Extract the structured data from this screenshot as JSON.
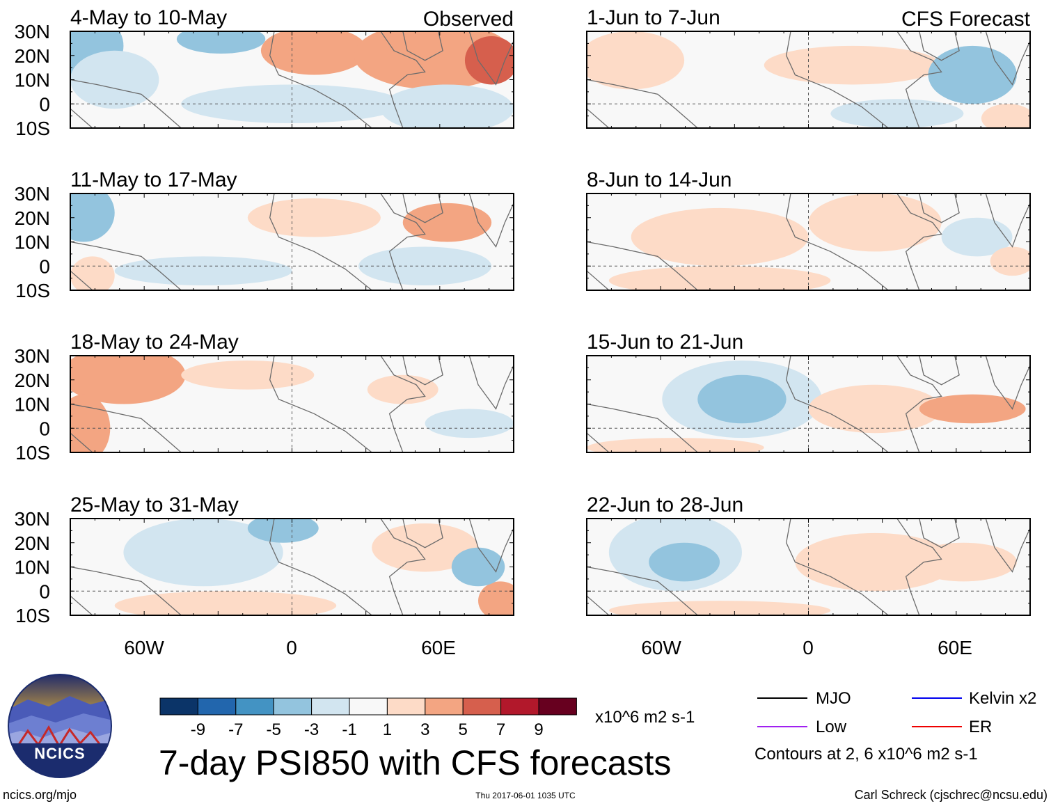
{
  "chart_data": {
    "type": "heatmap",
    "title": "7-day PSI850 with CFS forecasts",
    "units": "x10^6 m2 s-1",
    "lat_ticks": [
      "30N",
      "20N",
      "10N",
      "0",
      "10S"
    ],
    "lon_ticks": [
      "60W",
      "0",
      "60E"
    ],
    "lat_range": [
      -10,
      30
    ],
    "lon_range": [
      -90,
      90
    ],
    "colorbar": {
      "levels": [
        "-9",
        "-7",
        "-5",
        "-3",
        "-1",
        "1",
        "3",
        "5",
        "7",
        "9"
      ],
      "colors": [
        "#0b3468",
        "#2266ad",
        "#4393c3",
        "#93c4de",
        "#d2e5f0",
        "#f8f8f8",
        "#fddbc7",
        "#f3a582",
        "#d65f4d",
        "#b2182b",
        "#67001f"
      ]
    },
    "panels": [
      {
        "label": "4-May to 10-May",
        "tag": "Observed"
      },
      {
        "label": "11-May to 17-May",
        "tag": ""
      },
      {
        "label": "18-May to 24-May",
        "tag": ""
      },
      {
        "label": "25-May to 31-May",
        "tag": ""
      },
      {
        "label": "1-Jun to 7-Jun",
        "tag": "CFS Forecast"
      },
      {
        "label": "8-Jun to 14-Jun",
        "tag": ""
      },
      {
        "label": "15-Jun to 21-Jun",
        "tag": ""
      },
      {
        "label": "22-Jun to 28-Jun",
        "tag": ""
      }
    ],
    "legend": [
      {
        "name": "MJO",
        "color": "#000000"
      },
      {
        "name": "Kelvin x2",
        "color": "#0000ee"
      },
      {
        "name": "Low",
        "color": "#a020f0"
      },
      {
        "name": "ER",
        "color": "#ee0000"
      }
    ],
    "contour_note": "Contours at 2, 6 x10^6 m2 s-1"
  },
  "logo": {
    "text": "NCICS"
  },
  "footer": {
    "left": "ncics.org/mjo",
    "center": "Thu 2017-06-01 1035 UTC",
    "right": "Carl Schreck (cjschrec@ncsu.edu)"
  }
}
